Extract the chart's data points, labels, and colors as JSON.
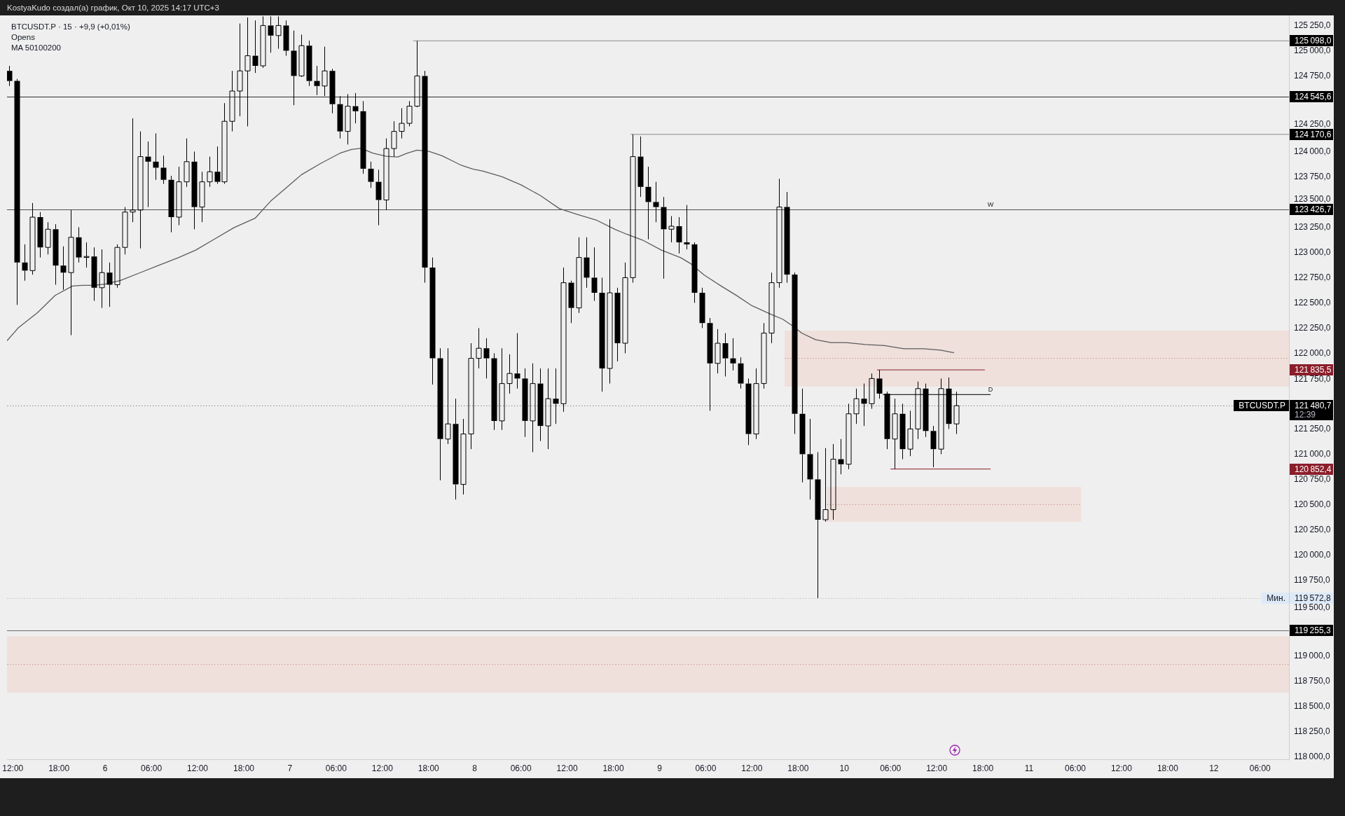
{
  "chart_data": {
    "type": "candlestick",
    "title": "BTCUSDT.P · 15 · +9,9 (+0,01%)",
    "color": "#000000",
    "x": [
      "2025-10-05T11:30",
      "2025-10-05T12:30",
      "2025-10-05T13:30",
      "2025-10-05T14:30",
      "2025-10-05T15:30",
      "2025-10-05T16:30",
      "2025-10-05T17:30",
      "2025-10-05T18:30",
      "2025-10-05T19:30",
      "2025-10-05T20:30",
      "2025-10-05T21:30",
      "2025-10-05T22:30",
      "2025-10-05T23:30",
      "2025-10-06T00:30",
      "2025-10-06T01:30",
      "2025-10-06T02:30",
      "2025-10-06T03:30",
      "2025-10-06T04:30",
      "2025-10-06T05:30",
      "2025-10-06T06:30",
      "2025-10-06T07:30",
      "2025-10-06T08:30",
      "2025-10-06T09:30",
      "2025-10-06T10:30",
      "2025-10-06T11:30",
      "2025-10-06T12:30",
      "2025-10-06T13:30",
      "2025-10-06T14:30",
      "2025-10-06T15:30",
      "2025-10-06T16:30",
      "2025-10-06T17:30",
      "2025-10-06T18:30",
      "2025-10-06T19:30",
      "2025-10-06T20:30",
      "2025-10-06T21:30",
      "2025-10-06T22:30",
      "2025-10-06T23:30",
      "2025-10-07T00:30",
      "2025-10-07T01:30",
      "2025-10-07T02:30",
      "2025-10-07T03:30",
      "2025-10-07T04:30",
      "2025-10-07T05:30",
      "2025-10-07T06:30",
      "2025-10-07T07:30",
      "2025-10-07T08:30",
      "2025-10-07T09:30",
      "2025-10-07T10:30",
      "2025-10-07T11:30",
      "2025-10-07T12:30",
      "2025-10-07T13:30",
      "2025-10-07T14:30",
      "2025-10-07T15:30",
      "2025-10-07T16:30",
      "2025-10-07T17:30",
      "2025-10-07T18:30",
      "2025-10-07T19:30",
      "2025-10-07T20:30",
      "2025-10-07T21:30",
      "2025-10-07T22:30",
      "2025-10-07T23:30",
      "2025-10-08T00:30",
      "2025-10-08T01:30",
      "2025-10-08T02:30",
      "2025-10-08T03:30",
      "2025-10-08T04:30",
      "2025-10-08T05:30",
      "2025-10-08T06:30",
      "2025-10-08T07:30",
      "2025-10-08T08:30",
      "2025-10-08T09:30",
      "2025-10-08T10:30",
      "2025-10-08T11:30",
      "2025-10-08T12:30",
      "2025-10-08T13:30",
      "2025-10-08T14:30",
      "2025-10-08T15:30",
      "2025-10-08T16:30",
      "2025-10-08T17:30",
      "2025-10-08T18:30",
      "2025-10-08T19:30",
      "2025-10-08T20:30",
      "2025-10-08T21:30",
      "2025-10-08T22:30",
      "2025-10-08T23:30",
      "2025-10-09T00:30",
      "2025-10-09T01:30",
      "2025-10-09T02:30",
      "2025-10-09T03:30",
      "2025-10-09T04:30",
      "2025-10-09T05:30",
      "2025-10-09T06:30",
      "2025-10-09T07:30",
      "2025-10-09T08:30",
      "2025-10-09T09:30",
      "2025-10-09T10:30",
      "2025-10-09T11:30",
      "2025-10-09T12:30",
      "2025-10-09T13:30",
      "2025-10-09T14:30",
      "2025-10-09T15:30",
      "2025-10-09T16:30",
      "2025-10-09T17:30",
      "2025-10-09T18:30",
      "2025-10-09T19:30",
      "2025-10-09T20:30",
      "2025-10-09T21:30",
      "2025-10-09T22:30",
      "2025-10-09T23:30",
      "2025-10-10T00:30",
      "2025-10-10T01:30",
      "2025-10-10T02:30",
      "2025-10-10T03:30",
      "2025-10-10T04:30",
      "2025-10-10T05:30",
      "2025-10-10T06:30",
      "2025-10-10T07:30",
      "2025-10-10T08:30",
      "2025-10-10T09:30",
      "2025-10-10T10:30",
      "2025-10-10T11:30",
      "2025-10-10T12:30",
      "2025-10-10T13:30",
      "2025-10-10T14:30"
    ],
    "ohlc": [
      [
        124800,
        124850,
        124650,
        124700
      ],
      [
        124700,
        124720,
        122480,
        122900
      ],
      [
        122900,
        123080,
        122720,
        122820
      ],
      [
        122820,
        123490,
        122780,
        123350
      ],
      [
        123350,
        123400,
        122950,
        123050
      ],
      [
        123050,
        123300,
        122980,
        123230
      ],
      [
        123230,
        123280,
        122680,
        122870
      ],
      [
        122870,
        123060,
        122630,
        122800
      ],
      [
        122800,
        123420,
        122180,
        123150
      ],
      [
        123150,
        123250,
        122900,
        122950
      ],
      [
        122950,
        123100,
        122850,
        122960
      ],
      [
        122960,
        123050,
        122520,
        122650
      ],
      [
        122650,
        123030,
        122450,
        122800
      ],
      [
        122800,
        122900,
        122460,
        122680
      ],
      [
        122680,
        123080,
        122650,
        123050
      ],
      [
        123050,
        123450,
        122980,
        123400
      ],
      [
        123400,
        124330,
        123300,
        123420
      ],
      [
        123420,
        124200,
        123040,
        123950
      ],
      [
        123950,
        124100,
        123450,
        123900
      ],
      [
        123900,
        124180,
        123720,
        123840
      ],
      [
        123840,
        123960,
        123680,
        123720
      ],
      [
        123720,
        123760,
        123200,
        123350
      ],
      [
        123350,
        123850,
        123270,
        123700
      ],
      [
        123700,
        124130,
        123650,
        123900
      ],
      [
        123900,
        124000,
        123230,
        123450
      ],
      [
        123450,
        123800,
        123300,
        123700
      ],
      [
        123700,
        123950,
        123650,
        123800
      ],
      [
        123800,
        124050,
        123680,
        123700
      ],
      [
        123700,
        124480,
        123680,
        124300
      ],
      [
        124300,
        124800,
        124200,
        124600
      ],
      [
        124600,
        125270,
        124350,
        124800
      ],
      [
        124800,
        125330,
        124250,
        124950
      ],
      [
        124950,
        125300,
        124780,
        124850
      ],
      [
        124850,
        125340,
        124830,
        125250
      ],
      [
        125250,
        125340,
        124980,
        125150
      ],
      [
        125150,
        125340,
        125020,
        125250
      ],
      [
        125250,
        125300,
        124950,
        125000
      ],
      [
        125000,
        125200,
        124460,
        124750
      ],
      [
        124750,
        125160,
        124740,
        125050
      ],
      [
        125050,
        125100,
        124650,
        124700
      ],
      [
        124700,
        124850,
        124560,
        124650
      ],
      [
        124650,
        125040,
        124550,
        124800
      ],
      [
        124800,
        124820,
        124380,
        124470
      ],
      [
        124470,
        124550,
        124130,
        124200
      ],
      [
        124200,
        124570,
        124070,
        124450
      ],
      [
        124450,
        124580,
        124280,
        124400
      ],
      [
        124400,
        124500,
        123780,
        123830
      ],
      [
        123830,
        123900,
        123640,
        123700
      ],
      [
        123700,
        123820,
        123270,
        123520
      ],
      [
        123520,
        124130,
        123420,
        124030
      ],
      [
        124030,
        124300,
        123950,
        124200
      ],
      [
        124200,
        124430,
        124130,
        124280
      ],
      [
        124280,
        124500,
        124250,
        124450
      ],
      [
        124450,
        125098,
        124440,
        124750
      ],
      [
        124750,
        124800,
        122700,
        122850
      ],
      [
        122850,
        122950,
        121690,
        121950
      ],
      [
        121950,
        122050,
        120740,
        121150
      ],
      [
        121150,
        122050,
        121100,
        121300
      ],
      [
        121300,
        121550,
        120550,
        120700
      ],
      [
        120700,
        121350,
        120600,
        121200
      ],
      [
        121200,
        122100,
        121050,
        121950
      ],
      [
        121950,
        122250,
        121850,
        122050
      ],
      [
        122050,
        122150,
        121750,
        121950
      ],
      [
        121950,
        122000,
        121240,
        121330
      ],
      [
        121330,
        122050,
        121240,
        121700
      ],
      [
        121700,
        121990,
        121600,
        121800
      ],
      [
        121800,
        122200,
        121650,
        121750
      ],
      [
        121750,
        121850,
        121170,
        121330
      ],
      [
        121330,
        121900,
        121020,
        121700
      ],
      [
        121700,
        121850,
        121130,
        121280
      ],
      [
        121280,
        121850,
        121050,
        121550
      ],
      [
        121550,
        121850,
        121300,
        121500
      ],
      [
        121500,
        122850,
        121420,
        122700
      ],
      [
        122700,
        122720,
        122300,
        122450
      ],
      [
        122450,
        123150,
        122400,
        122950
      ],
      [
        122950,
        123150,
        122650,
        122750
      ],
      [
        122750,
        123050,
        122520,
        122600
      ],
      [
        122600,
        122750,
        121620,
        121850
      ],
      [
        121850,
        123330,
        121700,
        122600
      ],
      [
        122600,
        122650,
        121920,
        122100
      ],
      [
        122100,
        122900,
        122000,
        122750
      ],
      [
        122750,
        124170.6,
        122700,
        123950
      ],
      [
        123950,
        124150,
        123550,
        123650
      ],
      [
        123650,
        123850,
        123130,
        123500
      ],
      [
        123500,
        123700,
        123300,
        123450
      ],
      [
        123450,
        123550,
        122740,
        123230
      ],
      [
        123230,
        123360,
        123100,
        123260
      ],
      [
        123260,
        123350,
        122990,
        123100
      ],
      [
        123100,
        123470,
        123030,
        123080
      ],
      [
        123080,
        123100,
        122500,
        122600
      ],
      [
        122600,
        122650,
        122250,
        122300
      ],
      [
        122300,
        122350,
        121430,
        121900
      ],
      [
        121900,
        122240,
        121800,
        122100
      ],
      [
        122100,
        122200,
        121770,
        121950
      ],
      [
        121950,
        122150,
        121830,
        121900
      ],
      [
        121900,
        121960,
        121650,
        121700
      ],
      [
        121700,
        121750,
        121090,
        121200
      ],
      [
        121200,
        121850,
        121150,
        121700
      ],
      [
        121700,
        122300,
        121650,
        122200
      ],
      [
        122200,
        122800,
        122100,
        122700
      ],
      [
        122700,
        123730,
        122650,
        123450
      ],
      [
        123450,
        123600,
        122700,
        122780
      ],
      [
        122780,
        122800,
        121200,
        121400
      ],
      [
        121400,
        121650,
        120720,
        121000
      ],
      [
        121000,
        121350,
        120550,
        120750
      ],
      [
        120750,
        121020,
        119572.8,
        120350
      ],
      [
        120350,
        121060,
        120330,
        120450
      ],
      [
        120450,
        121100,
        120350,
        120950
      ],
      [
        120950,
        121150,
        120800,
        120900
      ],
      [
        120900,
        121500,
        120850,
        121400
      ],
      [
        121400,
        121650,
        121300,
        121550
      ],
      [
        121550,
        121700,
        121280,
        121500
      ],
      [
        121500,
        121800,
        121450,
        121750
      ],
      [
        121750,
        121835.5,
        121550,
        121600
      ],
      [
        121600,
        121620,
        121050,
        121150
      ],
      [
        121150,
        121550,
        120852.4,
        121400
      ],
      [
        121400,
        121500,
        120950,
        121050
      ],
      [
        121050,
        121430,
        120980,
        121250
      ],
      [
        121250,
        121720,
        121150,
        121650
      ],
      [
        121650,
        121700,
        121170,
        121230
      ],
      [
        121230,
        121280,
        120870,
        121050
      ],
      [
        121050,
        121750,
        121000,
        121650
      ],
      [
        121650,
        121760,
        121250,
        121300
      ],
      [
        121300,
        121620,
        121200,
        121480.7
      ]
    ],
    "series": [
      {
        "type": "line",
        "color": "#c8998a",
        "line_style": "dotted",
        "x": [
          "2025-10-05T11:15",
          "2025-10-12T09:45"
        ],
        "values": [
          118915,
          118915
        ],
        "lower": [
          118635,
          118635
        ],
        "upper": [
          119195,
          119195
        ]
      },
      {
        "type": "line",
        "color": "#c8998a",
        "line_style": "dotted",
        "x": [
          "2025-10-09T16:15",
          "2025-10-12T09:45"
        ],
        "values": [
          121950,
          121950
        ],
        "lower": [
          121670,
          121670
        ],
        "upper": [
          122225,
          122225
        ]
      },
      {
        "type": "line",
        "color": "#c8998a",
        "line_style": "dotted",
        "x": [
          "2025-10-09T21:45",
          "2025-10-11T06:45"
        ],
        "values": [
          120500,
          120500
        ],
        "lower": [
          120330,
          120330
        ],
        "upper": [
          120675,
          120675
        ]
      },
      {
        "type": "line",
        "name": "125 098,0",
        "color": "#8a8a8a",
        "x": [
          "2025-10-07T16:00",
          "2025-10-12T09:45"
        ],
        "values": [
          125098.0,
          125098.0
        ]
      },
      {
        "type": "line",
        "name": "124 170,6",
        "color": "#8a8a8a",
        "x": [
          "2025-10-08T20:15",
          "2025-10-12T09:45"
        ],
        "values": [
          124170.6,
          124170.6
        ]
      },
      {
        "type": "line",
        "name": "121 835,5",
        "color": "#8b1e2a",
        "x": [
          "2025-10-10T04:15",
          "2025-10-10T18:15"
        ],
        "values": [
          121835.5,
          121835.5
        ]
      },
      {
        "type": "line",
        "name": "120 852,4",
        "color": "#8b1e2a",
        "x": [
          "2025-10-10T06:00",
          "2025-10-10T19:00"
        ],
        "values": [
          120852.4,
          120852.4
        ]
      },
      {
        "type": "line",
        "color": "#2b2b2b",
        "x": [
          "2025-10-10T05:00",
          "2025-10-10T19:00"
        ],
        "values": [
          121590,
          121590
        ]
      },
      {
        "type": "line",
        "color": "#5c5c5c",
        "x": [
          "2025-10-05T11:15",
          "2025-10-05T12:45",
          "2025-10-05T15:15",
          "2025-10-05T17:30",
          "2025-10-05T19:45",
          "2025-10-05T21:00",
          "2025-10-05T22:30",
          "2025-10-06T00:00",
          "2025-10-06T02:00",
          "2025-10-06T04:30",
          "2025-10-06T07:00",
          "2025-10-06T09:30",
          "2025-10-06T11:45",
          "2025-10-06T14:15",
          "2025-10-06T16:45",
          "2025-10-06T19:30",
          "2025-10-06T21:30",
          "2025-10-06T23:30",
          "2025-10-07T01:30",
          "2025-10-07T04:00",
          "2025-10-07T06:30",
          "2025-10-07T08:00",
          "2025-10-07T09:15",
          "2025-10-07T10:45",
          "2025-10-07T12:30",
          "2025-10-07T14:00",
          "2025-10-07T15:15",
          "2025-10-07T16:30",
          "2025-10-07T18:00",
          "2025-10-07T19:45",
          "2025-10-07T21:15",
          "2025-10-07T22:15",
          "2025-10-07T23:45",
          "2025-10-08T01:00",
          "2025-10-08T03:30",
          "2025-10-08T06:00",
          "2025-10-08T08:30",
          "2025-10-08T11:00",
          "2025-10-08T13:15",
          "2025-10-08T15:45",
          "2025-10-08T18:15",
          "2025-10-08T19:45",
          "2025-10-08T21:45",
          "2025-10-09T00:15",
          "2025-10-09T02:45",
          "2025-10-09T04:00",
          "2025-10-09T05:45",
          "2025-10-09T07:15",
          "2025-10-09T08:00",
          "2025-10-09T10:00",
          "2025-10-09T12:00",
          "2025-10-09T14:30",
          "2025-10-09T16:00",
          "2025-10-09T17:15",
          "2025-10-09T18:30",
          "2025-10-09T20:15",
          "2025-10-09T22:15",
          "2025-10-10T00:15",
          "2025-10-10T02:45",
          "2025-10-10T05:15",
          "2025-10-10T07:45",
          "2025-10-10T10:15",
          "2025-10-10T12:30",
          "2025-10-10T14:15"
        ],
        "values": [
          122124,
          122255,
          122405,
          122574,
          122667,
          122674,
          122674,
          122686,
          122723,
          122798,
          122873,
          122948,
          123023,
          123135,
          123247,
          123341,
          123509,
          123640,
          123771,
          123883,
          123984,
          124021,
          124033,
          123984,
          123954,
          123947,
          123984,
          124014,
          124003,
          123958,
          123902,
          123864,
          123827,
          123808,
          123752,
          123670,
          123565,
          123434,
          123378,
          123322,
          123228,
          123180,
          123124,
          123023,
          122948,
          122891,
          122779,
          122704,
          122667,
          122573,
          122472,
          122386,
          122338,
          122274,
          122199,
          122136,
          122106,
          122106,
          122087,
          122076,
          122046,
          122046,
          122031,
          122005
        ]
      }
    ],
    "xlim": [
      "2025-10-05T11:15",
      "2025-10-12T09:45"
    ],
    "xticks": [
      {
        "value": "2025-10-05T12:00",
        "label": "12:00"
      },
      {
        "value": "2025-10-05T18:00",
        "label": "18:00"
      },
      {
        "value": "2025-10-06",
        "label": "6"
      },
      {
        "value": "2025-10-06T06:00",
        "label": "06:00"
      },
      {
        "value": "2025-10-06T12:00",
        "label": "12:00"
      },
      {
        "value": "2025-10-06T18:00",
        "label": "18:00"
      },
      {
        "value": "2025-10-07",
        "label": "7"
      },
      {
        "value": "2025-10-07T06:00",
        "label": "06:00"
      },
      {
        "value": "2025-10-07T12:00",
        "label": "12:00"
      },
      {
        "value": "2025-10-07T18:00",
        "label": "18:00"
      },
      {
        "value": "2025-10-08",
        "label": "8"
      },
      {
        "value": "2025-10-08T06:00",
        "label": "06:00"
      },
      {
        "value": "2025-10-08T12:00",
        "label": "12:00"
      },
      {
        "value": "2025-10-08T18:00",
        "label": "18:00"
      },
      {
        "value": "2025-10-09",
        "label": "9"
      },
      {
        "value": "2025-10-09T06:00",
        "label": "06:00"
      },
      {
        "value": "2025-10-09T12:00",
        "label": "12:00"
      },
      {
        "value": "2025-10-09T18:00",
        "label": "18:00"
      },
      {
        "value": "2025-10-10",
        "label": "10"
      },
      {
        "value": "2025-10-10T06:00",
        "label": "06:00"
      },
      {
        "value": "2025-10-10T12:00",
        "label": "12:00"
      },
      {
        "value": "2025-10-10T18:00",
        "label": "18:00"
      },
      {
        "value": "2025-10-11",
        "label": "11"
      },
      {
        "value": "2025-10-11T06:00",
        "label": "06:00"
      },
      {
        "value": "2025-10-11T12:00",
        "label": "12:00"
      },
      {
        "value": "2025-10-11T18:00",
        "label": "18:00"
      },
      {
        "value": "2025-10-12",
        "label": "12"
      },
      {
        "value": "2025-10-12T06:00",
        "label": "06:00"
      }
    ],
    "ylim": [
      117975,
      125350
    ],
    "yticks": [
      {
        "value": 118000,
        "label": "118 000,0"
      },
      {
        "value": 118250,
        "label": "118 250,0"
      },
      {
        "value": 118500,
        "label": "118 500,0"
      },
      {
        "value": 118750,
        "label": "118 750,0"
      },
      {
        "value": 119000,
        "label": "119 000,0"
      },
      {
        "value": 119500,
        "label": "119 500,0"
      },
      {
        "value": 119750,
        "label": "119 750,0"
      },
      {
        "value": 120000,
        "label": "120 000,0"
      },
      {
        "value": 120250,
        "label": "120 250,0"
      },
      {
        "value": 120500,
        "label": "120 500,0"
      },
      {
        "value": 120750,
        "label": "120 750,0"
      },
      {
        "value": 121000,
        "label": "121 000,0"
      },
      {
        "value": 121250,
        "label": "121 250,0"
      },
      {
        "value": 121750,
        "label": "121 750,0"
      },
      {
        "value": 122000,
        "label": "122 000,0"
      },
      {
        "value": 122250,
        "label": "122 250,0"
      },
      {
        "value": 122500,
        "label": "122 500,0"
      },
      {
        "value": 122750,
        "label": "122 750,0"
      },
      {
        "value": 123000,
        "label": "123 000,0"
      },
      {
        "value": 123250,
        "label": "123 250,0"
      },
      {
        "value": 123500,
        "label": "123 500,0"
      },
      {
        "value": 123750,
        "label": "123 750,0"
      },
      {
        "value": 124000,
        "label": "124 000,0"
      },
      {
        "value": 124250,
        "label": "124 250,0"
      },
      {
        "value": 124750,
        "label": "124 750,0"
      },
      {
        "value": 125000,
        "label": "125 000,0"
      },
      {
        "value": 125250,
        "label": "125 250,0"
      }
    ],
    "ref_lines": [
      {
        "axis": "y",
        "value": 124545.6,
        "label": "124 545,6",
        "color": "#2e2e2e"
      },
      {
        "axis": "y",
        "value": 123426.7,
        "label": "123 426,7",
        "color": "#505050"
      },
      {
        "axis": "y",
        "value": 121480.7,
        "label": "121 480,7\n12:39",
        "color": "#8c8c8c",
        "line_style": "dotted"
      },
      {
        "axis": "y",
        "value": 119572.8,
        "label": "119 572,8",
        "color": "#c2c2c2",
        "line_style": "dotted"
      },
      {
        "axis": "y",
        "value": 119255.3,
        "label": "119 255,3",
        "color": "#6a6a6a"
      }
    ],
    "annotations": [
      "KostyaKudo создал(а) график, Окт 10, 2025 14:17 UTC+3",
      "Opens",
      "MA 50100200",
      {
        "text": "W",
        "x": "2025-10-10T19:00",
        "y": 123426.7
      },
      {
        "text": "D",
        "x": "2025-10-10T19:00",
        "y": 121590
      },
      {
        "text": "BTCUSDT.P",
        "x": "2025-10-12T09:45",
        "y": 121480.7
      },
      {
        "text": "Мин.",
        "x": "2025-10-12T09:45",
        "y": 119572.8
      }
    ]
  }
}
